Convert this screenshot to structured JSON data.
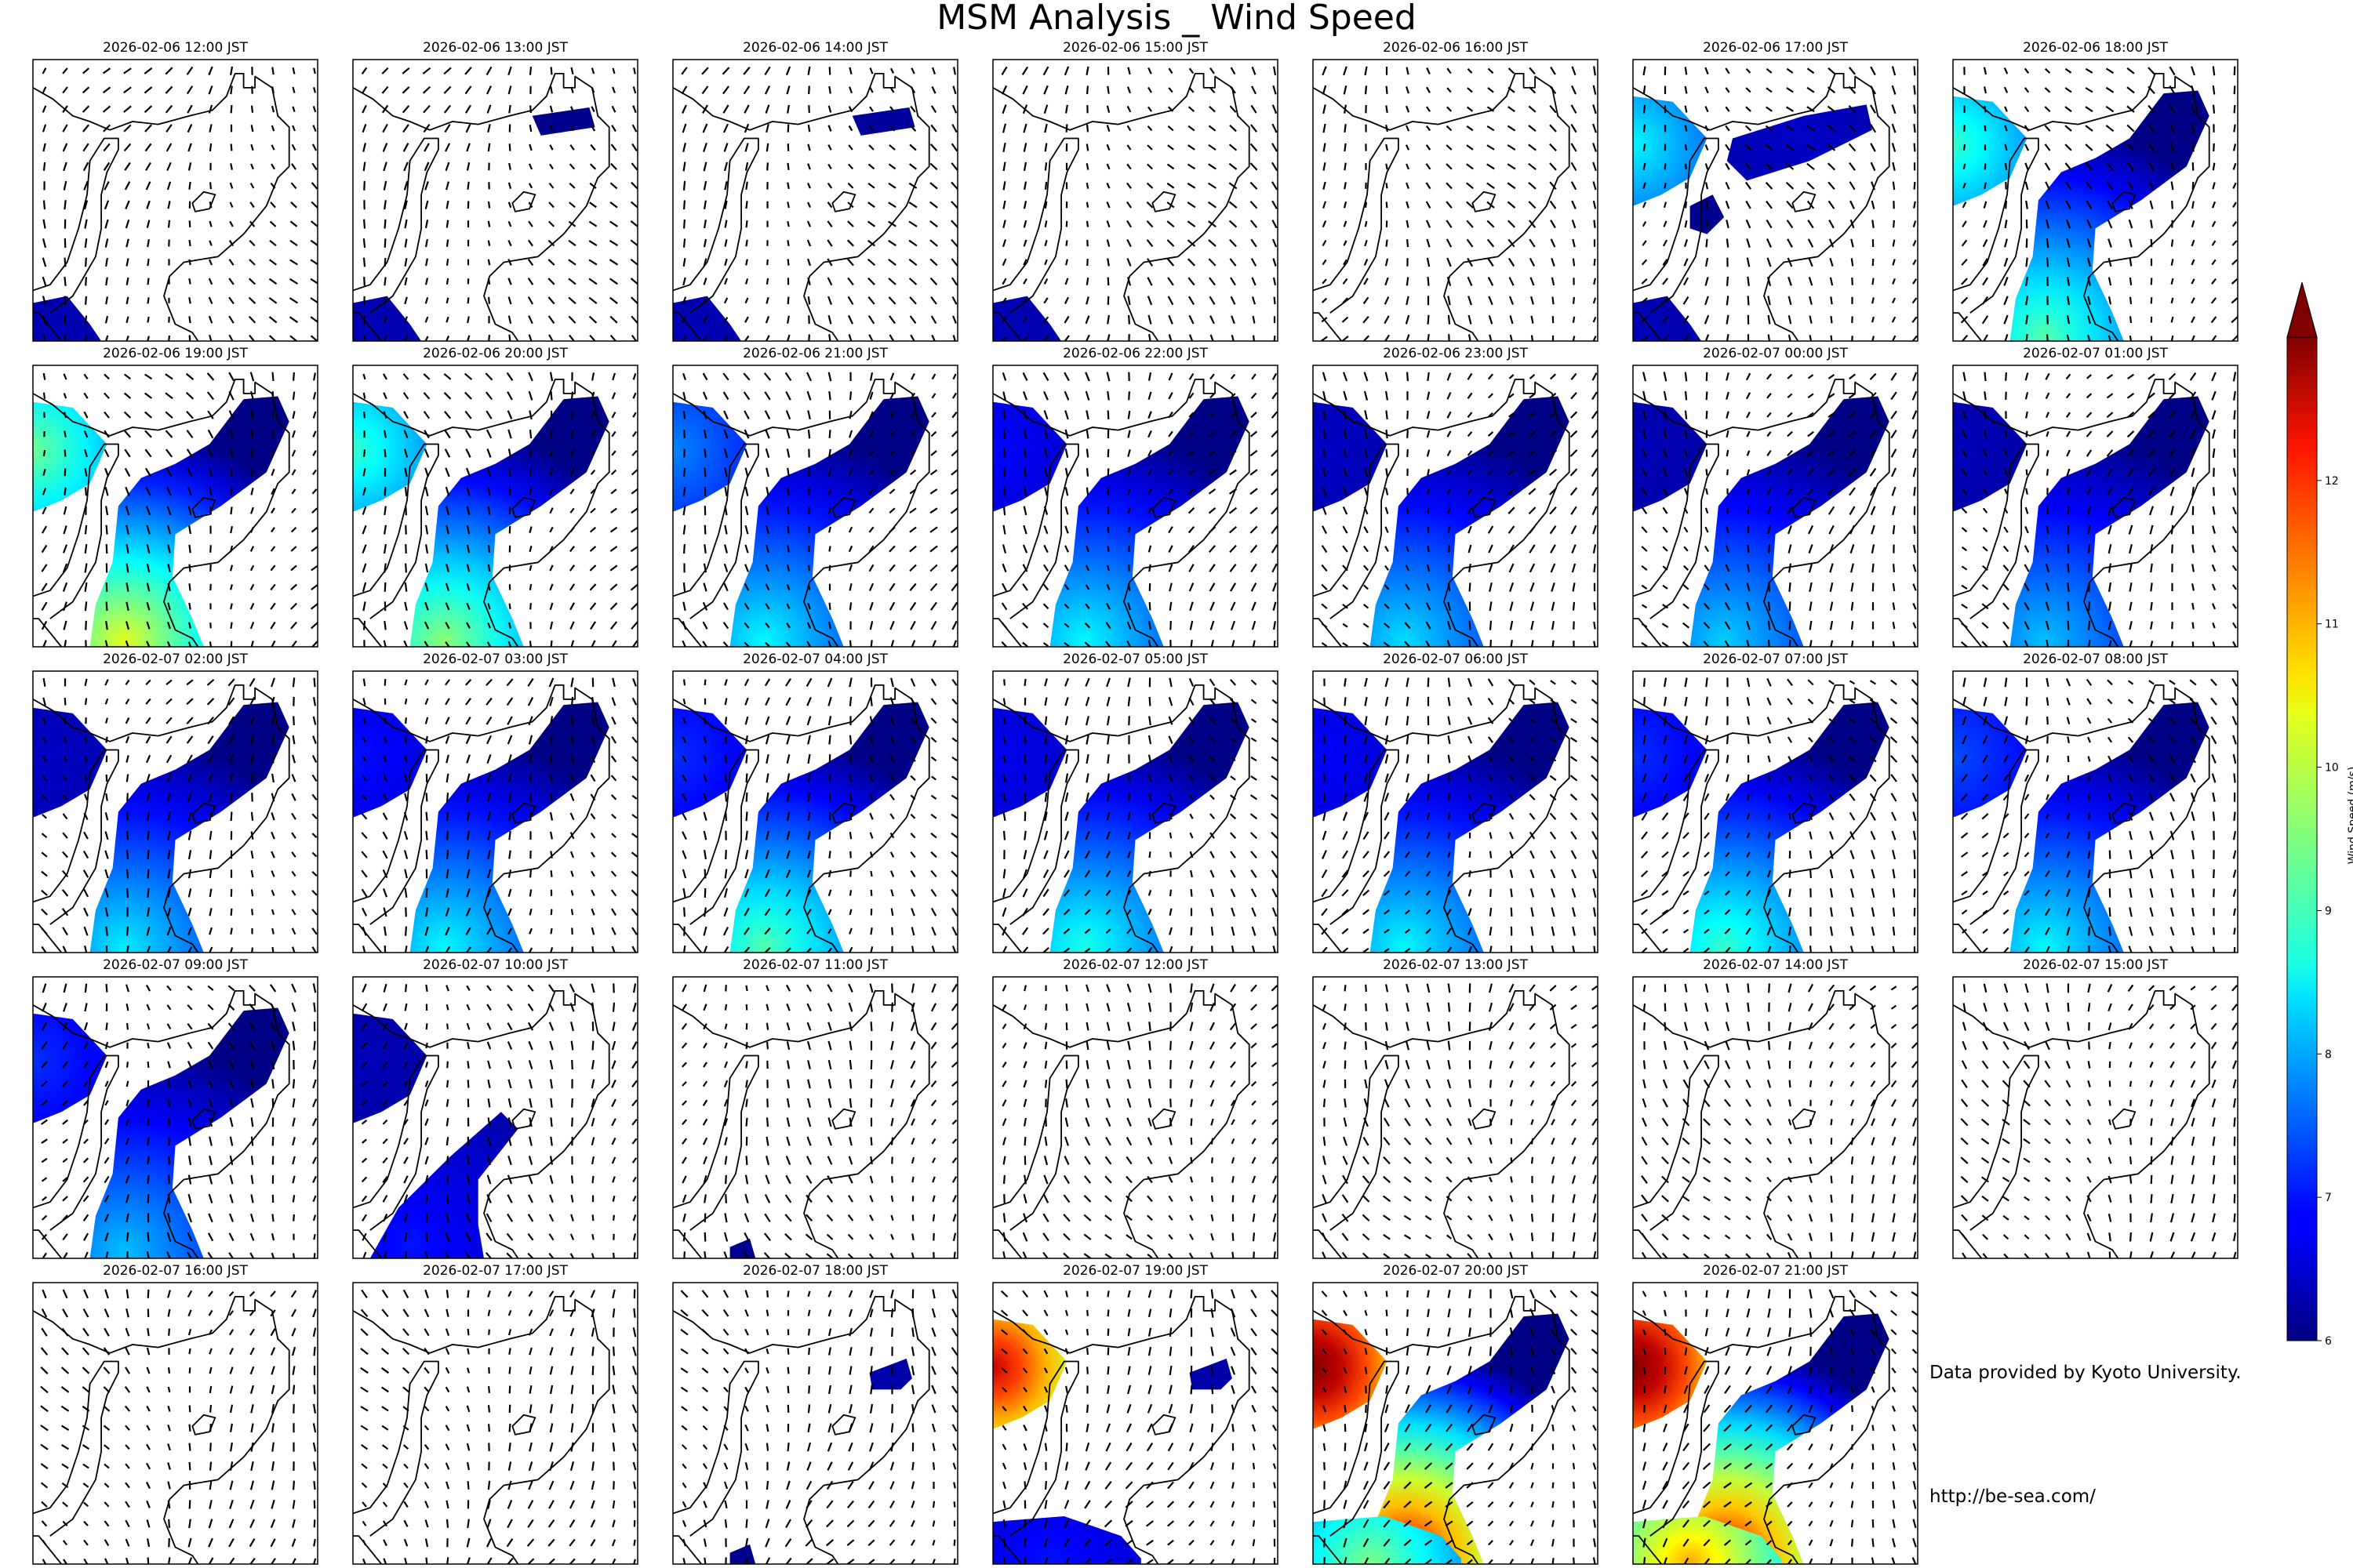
{
  "chart_data": {
    "type": "heatmap",
    "title": "MSM Analysis _ Wind Speed",
    "colorbar": {
      "label": "Wind Speed (m/s)",
      "min": 6,
      "max": 13,
      "ticks": [
        "6",
        "7",
        "8",
        "9",
        "10",
        "11",
        "12"
      ],
      "extend": "max",
      "colormap": "jet",
      "placement": "right"
    },
    "layout": {
      "rows": 5,
      "cols": 7
    },
    "panels": [
      {
        "time": "2026-02-06 12:00 JST",
        "regions": [
          {
            "area": "sw-corner",
            "peak": 6.4
          }
        ]
      },
      {
        "time": "2026-02-06 13:00 JST",
        "regions": [
          {
            "area": "sw-corner",
            "peak": 6.4
          },
          {
            "area": "north-east",
            "peak": 6.1
          }
        ]
      },
      {
        "time": "2026-02-06 14:00 JST",
        "regions": [
          {
            "area": "sw-corner",
            "peak": 6.4
          },
          {
            "area": "north-east",
            "peak": 6.2
          }
        ]
      },
      {
        "time": "2026-02-06 15:00 JST",
        "regions": [
          {
            "area": "sw-corner",
            "peak": 6.4
          }
        ]
      },
      {
        "time": "2026-02-06 16:00 JST",
        "regions": []
      },
      {
        "time": "2026-02-06 17:00 JST",
        "regions": [
          {
            "area": "west-edge",
            "peak": 8.6
          },
          {
            "area": "north-band",
            "peak": 6.5
          },
          {
            "area": "central-spot",
            "peak": 6.1
          },
          {
            "area": "sw-corner",
            "peak": 6.4
          }
        ]
      },
      {
        "time": "2026-02-06 18:00 JST",
        "regions": [
          {
            "area": "west-edge",
            "peak": 9.0
          },
          {
            "area": "bay-and-channel",
            "peak": 9.2
          }
        ]
      },
      {
        "time": "2026-02-06 19:00 JST",
        "regions": [
          {
            "area": "west-edge",
            "peak": 9.4
          },
          {
            "area": "bay-and-channel",
            "peak": 10.2
          }
        ]
      },
      {
        "time": "2026-02-06 20:00 JST",
        "regions": [
          {
            "area": "west-edge",
            "peak": 9.0
          },
          {
            "area": "bay-and-channel",
            "peak": 9.6
          }
        ]
      },
      {
        "time": "2026-02-06 21:00 JST",
        "regions": [
          {
            "area": "west-edge",
            "peak": 7.8
          },
          {
            "area": "bay-and-channel",
            "peak": 8.6
          }
        ]
      },
      {
        "time": "2026-02-06 22:00 JST",
        "regions": [
          {
            "area": "west-edge",
            "peak": 6.9
          },
          {
            "area": "bay-and-channel",
            "peak": 8.6
          }
        ]
      },
      {
        "time": "2026-02-06 23:00 JST",
        "regions": [
          {
            "area": "west-edge",
            "peak": 6.5
          },
          {
            "area": "bay-and-channel",
            "peak": 8.4
          }
        ]
      },
      {
        "time": "2026-02-07 00:00 JST",
        "regions": [
          {
            "area": "west-edge",
            "peak": 6.4
          },
          {
            "area": "bay-and-channel",
            "peak": 8.3
          }
        ]
      },
      {
        "time": "2026-02-07 01:00 JST",
        "regions": [
          {
            "area": "west-edge",
            "peak": 6.4
          },
          {
            "area": "bay-and-channel",
            "peak": 8.2
          }
        ]
      },
      {
        "time": "2026-02-07 02:00 JST",
        "regions": [
          {
            "area": "west-edge",
            "peak": 6.5
          },
          {
            "area": "bay-and-channel",
            "peak": 8.5
          }
        ]
      },
      {
        "time": "2026-02-07 03:00 JST",
        "regions": [
          {
            "area": "west-edge",
            "peak": 7.0
          },
          {
            "area": "bay-and-channel",
            "peak": 8.6
          }
        ]
      },
      {
        "time": "2026-02-07 04:00 JST",
        "regions": [
          {
            "area": "west-edge",
            "peak": 7.2
          },
          {
            "area": "bay-and-channel",
            "peak": 9.2
          }
        ]
      },
      {
        "time": "2026-02-07 05:00 JST",
        "regions": [
          {
            "area": "west-edge",
            "peak": 6.8
          },
          {
            "area": "bay-and-channel",
            "peak": 8.8
          }
        ]
      },
      {
        "time": "2026-02-07 06:00 JST",
        "regions": [
          {
            "area": "west-edge",
            "peak": 6.9
          },
          {
            "area": "bay-and-channel",
            "peak": 8.6
          }
        ]
      },
      {
        "time": "2026-02-07 07:00 JST",
        "regions": [
          {
            "area": "west-edge",
            "peak": 7.2
          },
          {
            "area": "bay-and-channel",
            "peak": 9.0
          }
        ]
      },
      {
        "time": "2026-02-07 08:00 JST",
        "regions": [
          {
            "area": "west-edge",
            "peak": 7.4
          },
          {
            "area": "bay-and-channel",
            "peak": 8.6
          }
        ]
      },
      {
        "time": "2026-02-07 09:00 JST",
        "regions": [
          {
            "area": "west-edge",
            "peak": 7.2
          },
          {
            "area": "bay-and-channel",
            "peak": 8.2
          }
        ]
      },
      {
        "time": "2026-02-07 10:00 JST",
        "regions": [
          {
            "area": "west-edge",
            "peak": 6.4
          },
          {
            "area": "channel",
            "peak": 7.0
          }
        ]
      },
      {
        "time": "2026-02-07 11:00 JST",
        "regions": [
          {
            "area": "south-spot",
            "peak": 6.1
          }
        ]
      },
      {
        "time": "2026-02-07 12:00 JST",
        "regions": []
      },
      {
        "time": "2026-02-07 13:00 JST",
        "regions": []
      },
      {
        "time": "2026-02-07 14:00 JST",
        "regions": []
      },
      {
        "time": "2026-02-07 15:00 JST",
        "regions": []
      },
      {
        "time": "2026-02-07 16:00 JST",
        "regions": []
      },
      {
        "time": "2026-02-07 17:00 JST",
        "regions": []
      },
      {
        "time": "2026-02-07 18:00 JST",
        "regions": [
          {
            "area": "east-spot",
            "peak": 6.3
          },
          {
            "area": "south-spot",
            "peak": 6.1
          }
        ]
      },
      {
        "time": "2026-02-07 19:00 JST",
        "regions": [
          {
            "area": "west-edge",
            "peak": 12.5
          },
          {
            "area": "east-spot",
            "peak": 6.3
          },
          {
            "area": "south-edge",
            "peak": 7.0
          }
        ]
      },
      {
        "time": "2026-02-07 20:00 JST",
        "regions": [
          {
            "area": "west-edge",
            "peak": 13.5
          },
          {
            "area": "bay-and-channel",
            "peak": 12.4
          },
          {
            "area": "south-edge",
            "peak": 9.5
          }
        ]
      },
      {
        "time": "2026-02-07 21:00 JST",
        "regions": [
          {
            "area": "west-edge",
            "peak": 13.5
          },
          {
            "area": "bay-and-channel",
            "peak": 12.3
          },
          {
            "area": "south-edge",
            "peak": 11.0
          }
        ]
      }
    ]
  },
  "credits": {
    "line1": "Data provided by Kyoto University.",
    "line2": "http://be-sea.com/"
  }
}
